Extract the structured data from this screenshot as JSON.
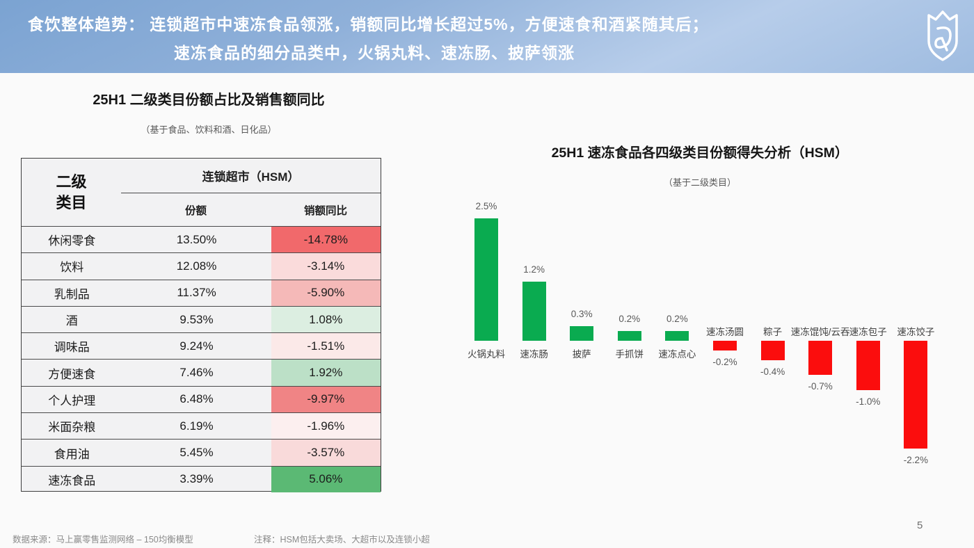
{
  "header": {
    "line1": "食饮整体趋势：  连锁超市中速冻食品领涨，销额同比增长超过5%，方便速食和酒紧随其后；",
    "line2": "速冻食品的细分品类中，火锅丸料、速冻肠、披萨领涨",
    "logo_icon": "shield-crown-logo",
    "banner_gradient": [
      "#7ba3d2",
      "#b7cdea"
    ]
  },
  "chart_data": [
    {
      "type": "bar",
      "title": "25H1 速冻食品各四级类目份额得失分析（HSM）",
      "subtitle": "（基于二级类目）",
      "categories": [
        "火锅丸料",
        "速冻肠",
        "披萨",
        "手抓饼",
        "速冻点心",
        "速冻汤圆",
        "粽子",
        "速冻馄饨/云吞",
        "速冻包子",
        "速冻饺子"
      ],
      "values": [
        2.5,
        1.2,
        0.3,
        0.2,
        0.2,
        -0.2,
        -0.4,
        -0.7,
        -1.0,
        -2.2
      ],
      "labels": [
        "2.5%",
        "1.2%",
        "0.3%",
        "0.2%",
        "0.2%",
        "-0.2%",
        "-0.4%",
        "-0.7%",
        "-1.0%",
        "-2.2%"
      ],
      "xlabel": "",
      "ylabel": "",
      "ylim": [
        -2.5,
        3.0
      ],
      "grid": false,
      "legend": "none",
      "positive_color": "#0aab50",
      "negative_color": "#fb0d0d",
      "value_labels_shown": true,
      "axis_line_shown": false
    },
    {
      "type": "table",
      "title": "25H1 二级类目份额占比及销售额同比",
      "subtitle": "（基于食品、饮料和酒、日化品）",
      "row_header": [
        "二级",
        "类目"
      ],
      "col_group": "连锁超市（HSM）",
      "columns": [
        "份额",
        "销额同比"
      ],
      "rows": [
        {
          "category": "休闲零食",
          "share": "13.50%",
          "yoy": "-14.78%",
          "yoy_bg": "#f1696b"
        },
        {
          "category": "饮料",
          "share": "12.08%",
          "yoy": "-3.14%",
          "yoy_bg": "#fadbdb"
        },
        {
          "category": "乳制品",
          "share": "11.37%",
          "yoy": "-5.90%",
          "yoy_bg": "#f5b9b8"
        },
        {
          "category": "酒",
          "share": "9.53%",
          "yoy": "1.08%",
          "yoy_bg": "#dceee1"
        },
        {
          "category": "调味品",
          "share": "9.24%",
          "yoy": "-1.51%",
          "yoy_bg": "#fbe9e8"
        },
        {
          "category": "方便速食",
          "share": "7.46%",
          "yoy": "1.92%",
          "yoy_bg": "#bce0c7"
        },
        {
          "category": "个人护理",
          "share": "6.48%",
          "yoy": "-9.97%",
          "yoy_bg": "#f08485"
        },
        {
          "category": "米面杂粮",
          "share": "6.19%",
          "yoy": "-1.96%",
          "yoy_bg": "#fcefef"
        },
        {
          "category": "食用油",
          "share": "5.45%",
          "yoy": "-3.57%",
          "yoy_bg": "#f9dada"
        },
        {
          "category": "速冻食品",
          "share": "3.39%",
          "yoy": "5.06%",
          "yoy_bg": "#5bb974"
        }
      ]
    }
  ],
  "footer": {
    "source": "数据来源：马上赢零售监测网络 – 150均衡模型",
    "note": "注释：HSM包括大卖场、大超市以及连锁小超",
    "page": "5"
  }
}
